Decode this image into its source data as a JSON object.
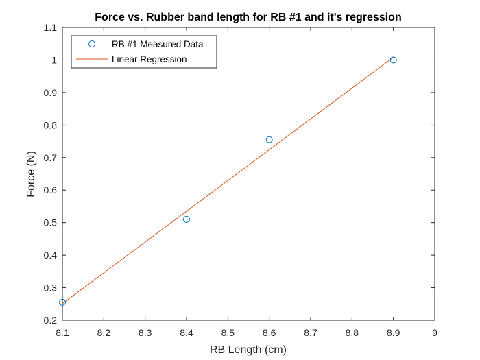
{
  "chart_data": {
    "type": "scatter",
    "title": "Force vs. Rubber band length for RB #1 and it's regression",
    "xlabel": "RB Length (cm)",
    "ylabel": "Force (N)",
    "xlim": [
      8.1,
      9.0
    ],
    "ylim": [
      0.2,
      1.1
    ],
    "xticks": [
      "8.1",
      "8.2",
      "8.3",
      "8.4",
      "8.5",
      "8.6",
      "8.7",
      "8.8",
      "8.9",
      "9"
    ],
    "yticks": [
      "0.2",
      "0.3",
      "0.4",
      "0.5",
      "0.6",
      "0.7",
      "0.8",
      "0.9",
      "1",
      "1.1"
    ],
    "grid": false,
    "legend_position": "top-left",
    "series": [
      {
        "name": "RB #1 Measured Data",
        "kind": "markers",
        "marker": "circle",
        "color": "#0072BD",
        "x": [
          8.1,
          8.4,
          8.6,
          8.9
        ],
        "y": [
          0.255,
          0.51,
          0.755,
          1.0
        ]
      },
      {
        "name": "Linear Regression",
        "kind": "line",
        "color": "#D95319",
        "x": [
          8.1,
          8.9
        ],
        "y": [
          0.251,
          1.008
        ]
      }
    ]
  }
}
